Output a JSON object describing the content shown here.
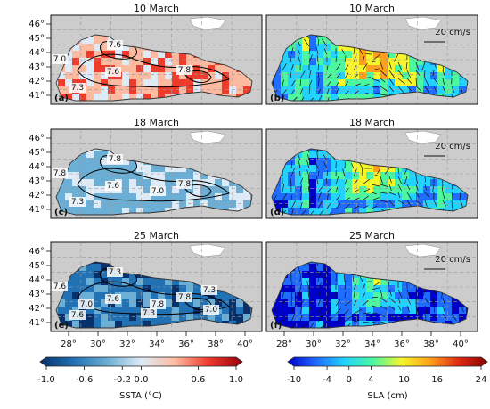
{
  "panels": [
    {
      "id": "a",
      "title": "10 March",
      "label": "(a)",
      "type": "ssta",
      "variant": "warm",
      "contour_labels": [
        "7.6",
        "7.0",
        "7.6",
        "7.8",
        "7.3"
      ]
    },
    {
      "id": "b",
      "title": "10 March",
      "label": "(b)",
      "type": "sla",
      "variant": "mixed",
      "scale_label": "20 cm/s"
    },
    {
      "id": "c",
      "title": "18 March",
      "label": "(c)",
      "type": "ssta",
      "variant": "light",
      "contour_labels": [
        "7.8",
        "7.8",
        "7.6",
        "7.8",
        "7.3",
        "7.0"
      ]
    },
    {
      "id": "d",
      "title": "18 March",
      "label": "(d)",
      "type": "sla",
      "variant": "mid",
      "scale_label": "20 cm/s"
    },
    {
      "id": "e",
      "title": "25 March",
      "label": "(e)",
      "type": "ssta",
      "variant": "cold",
      "contour_labels": [
        "7.3",
        "7.6",
        "7.6",
        "7.8",
        "7.6",
        "7.8",
        "7.3",
        "7.0",
        "7.0",
        "7.3"
      ]
    },
    {
      "id": "f",
      "title": "25 March",
      "label": "(f)",
      "type": "sla",
      "variant": "low",
      "scale_label": "20 cm/s"
    }
  ],
  "axes": {
    "lat_ticks": [
      "46°",
      "45°",
      "44°",
      "43°",
      "42°",
      "41°"
    ],
    "lon_ticks": [
      "28°",
      "30°",
      "32°",
      "34°",
      "36°",
      "38°",
      "40°"
    ],
    "lon_range": [
      27.3,
      41.9
    ],
    "lat_range": [
      40.5,
      47.0
    ]
  },
  "colorbars": {
    "ssta": {
      "label": "SSTA (°C)",
      "ticks": [
        "-1.0",
        "-0.6",
        "-0.2",
        "0.0",
        "0.6",
        "1.0"
      ],
      "tick_values": [
        -1.0,
        -0.6,
        -0.2,
        0.0,
        0.6,
        1.0
      ],
      "range": [
        -1.0,
        1.0
      ],
      "colors": [
        "#08306b",
        "#2171b5",
        "#6baed6",
        "#deebf7",
        "#fcbba1",
        "#ef3b2c",
        "#99000d"
      ]
    },
    "sla": {
      "label": "SLA (cm)",
      "ticks": [
        "-10",
        "-4",
        "0",
        "4",
        "10",
        "16",
        "24"
      ],
      "tick_values": [
        -10,
        -4,
        0,
        4,
        10,
        16,
        24
      ],
      "range": [
        -10,
        24
      ],
      "colors": [
        "#0000cc",
        "#1f6cff",
        "#22d3ff",
        "#4cf7a0",
        "#f6f52c",
        "#ff9f1c",
        "#e02b12",
        "#8a0000"
      ]
    }
  },
  "colors": {
    "land": "#ffffff",
    "sea_bg": "#cccccc",
    "contour": "#000000",
    "grid": "#9a9a9a"
  }
}
